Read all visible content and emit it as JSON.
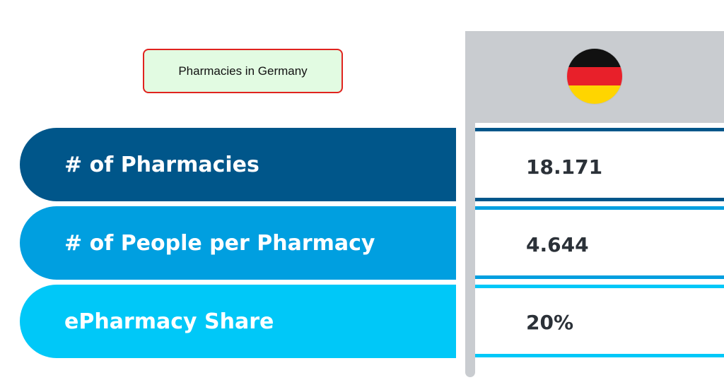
{
  "title": "Pharmacies in Germany",
  "colors": {
    "row1": "#00568a",
    "row2": "#009fe0",
    "row3": "#00c8f8",
    "header_bg": "#c9ccd0",
    "title_border": "#e0231f",
    "title_bg": "#e2fbe2"
  },
  "header": {
    "flag_icon": "germany-flag-icon"
  },
  "rows": [
    {
      "label": "# of Pharmacies",
      "value": "18.171"
    },
    {
      "label": "# of People per Pharmacy",
      "value": "4.644 ("
    },
    {
      "label": "ePharmacy Share",
      "value": "20%"
    }
  ]
}
